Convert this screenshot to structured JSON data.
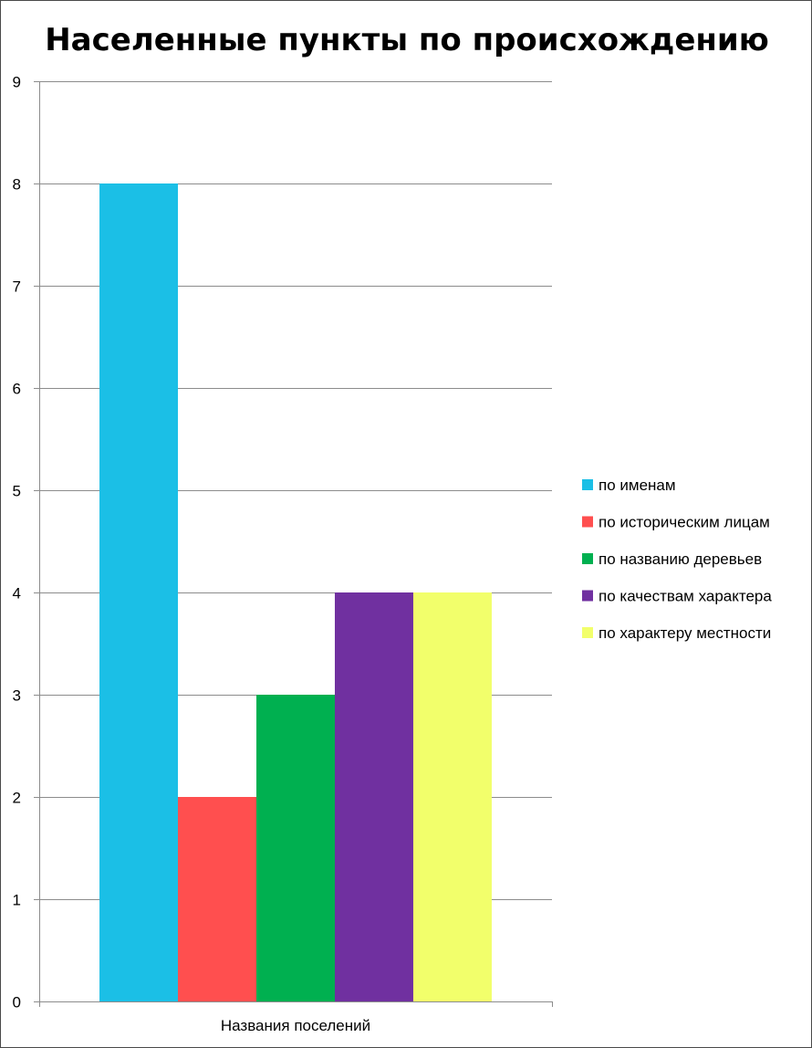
{
  "chart_data": {
    "type": "bar",
    "title": "Населенные пункты по происхождению",
    "xlabel": "",
    "ylabel": "",
    "categories": [
      "Названия поселений"
    ],
    "ylim": [
      0,
      9
    ],
    "yticks": [
      0,
      1,
      2,
      3,
      4,
      5,
      6,
      7,
      8,
      9
    ],
    "grid": true,
    "legend_position": "right",
    "series": [
      {
        "name": "по именам",
        "color": "#1BBFE6",
        "values": [
          8
        ]
      },
      {
        "name": "по историческим лицам",
        "color": "#FF4F4F",
        "values": [
          2
        ]
      },
      {
        "name": "по названию деревьев",
        "color": "#00B050",
        "values": [
          3
        ]
      },
      {
        "name": "по качествам характера",
        "color": "#7030A0",
        "values": [
          4
        ]
      },
      {
        "name": "по характеру местности",
        "color": "#F2FF6B",
        "values": [
          4
        ]
      }
    ]
  }
}
